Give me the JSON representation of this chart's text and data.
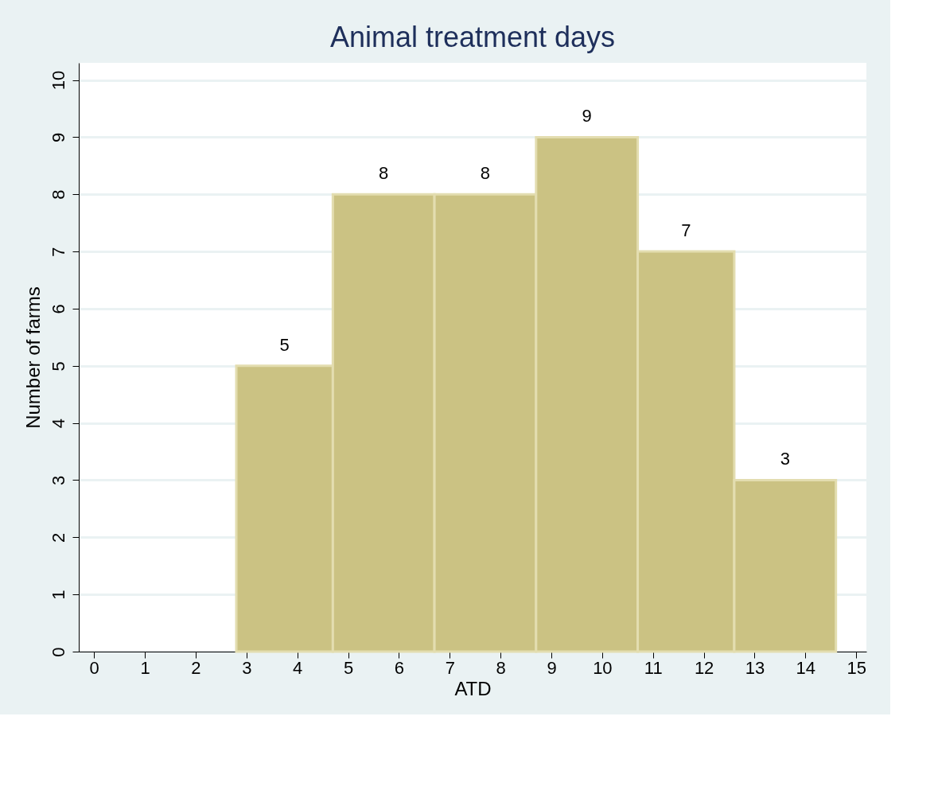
{
  "chart_data": {
    "type": "histogram",
    "title": "Animal treatment days",
    "xlabel": "ATD",
    "ylabel": "Number of farms",
    "bins": [
      2.8,
      4.7,
      6.7,
      8.7,
      10.7,
      12.6,
      14.6
    ],
    "values": [
      5,
      8,
      8,
      9,
      7,
      3
    ],
    "color": "#cbc283",
    "xlim": [
      -0.3,
      15.2
    ],
    "xticks": [
      0,
      1,
      2,
      3,
      4,
      5,
      6,
      7,
      8,
      9,
      10,
      11,
      12,
      13,
      14,
      15
    ],
    "ylim": [
      0,
      10.3
    ],
    "yticks": [
      0,
      1,
      2,
      3,
      4,
      5,
      6,
      7,
      8,
      9,
      10
    ],
    "grid": "y",
    "data_labels": true
  }
}
